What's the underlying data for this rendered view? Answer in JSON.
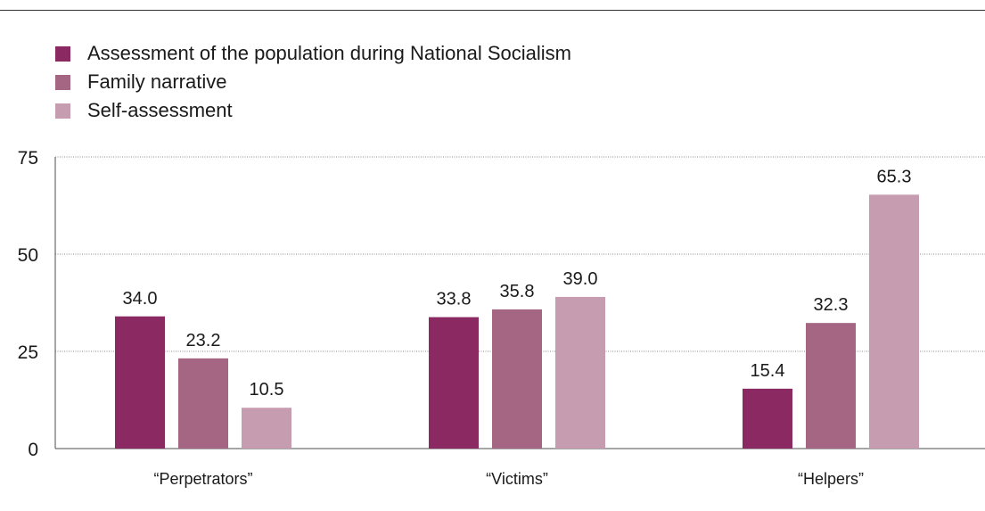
{
  "chart_data": {
    "type": "bar",
    "title": "",
    "xlabel": "",
    "ylabel": "",
    "categories": [
      "“Perpetrators”",
      "“Victims”",
      "“Helpers”"
    ],
    "series": [
      {
        "name": "Assessment of the population during National Socialism",
        "color": "#8b2a62",
        "values": [
          34.0,
          33.8,
          15.4
        ],
        "labels": [
          "34.0",
          "33.8",
          "15.4"
        ]
      },
      {
        "name": "Family narrative",
        "color": "#a56683",
        "values": [
          23.2,
          35.8,
          32.3
        ],
        "labels": [
          "23.2",
          "35.8",
          "32.3"
        ]
      },
      {
        "name": "Self-assessment",
        "color": "#c69db0",
        "values": [
          10.5,
          39.0,
          65.3
        ],
        "labels": [
          "10.5",
          "39.0",
          "65.3"
        ]
      }
    ],
    "ylim": [
      0,
      75
    ],
    "yticks": [
      0,
      25,
      50,
      75
    ],
    "ytick_labels": [
      "0",
      "25",
      "50",
      "75"
    ],
    "grid": true,
    "legend_position": "top-left"
  }
}
